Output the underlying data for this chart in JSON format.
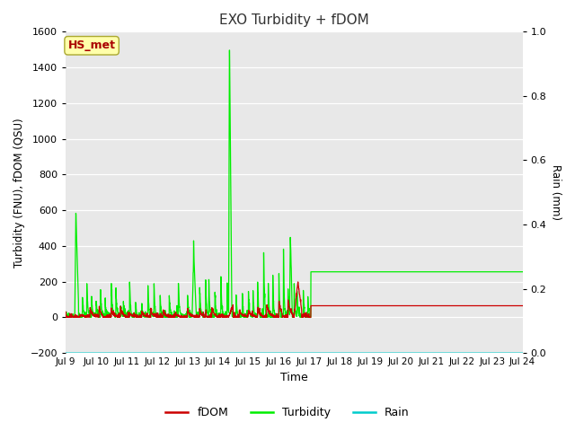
{
  "title": "EXO Turbidity + fDOM",
  "xlabel": "Time",
  "ylabel_left": "Turbidity (FNU), fDOM (QSU)",
  "ylabel_right": "Rain (mm)",
  "ylim_left": [
    -200,
    1600
  ],
  "ylim_right": [
    0.0,
    1.0
  ],
  "yticks_left": [
    -200,
    0,
    200,
    400,
    600,
    800,
    1000,
    1200,
    1400,
    1600
  ],
  "yticks_right": [
    0.0,
    0.2,
    0.4,
    0.6,
    0.8,
    1.0
  ],
  "xtick_labels": [
    "Jul 9",
    "Jul 10",
    "Jul 11",
    "Jul 12",
    "Jul 13",
    "Jul 14",
    "Jul 15",
    "Jul 16",
    "Jul 17",
    "Jul 18",
    "Jul 19",
    "Jul 20",
    "Jul 21",
    "Jul 22",
    "Jul 23",
    "Jul 24"
  ],
  "fig_bg_color": "#ffffff",
  "plot_bg_color": "#e8e8e8",
  "fdom_color": "#cc0000",
  "turbidity_color": "#00ee00",
  "rain_color": "#00cccc",
  "box_facecolor": "#ffffaa",
  "box_edgecolor": "#aaa830",
  "box_text": "HS_met",
  "box_text_color": "#aa0000",
  "legend_labels": [
    "fDOM",
    "Turbidity",
    "Rain"
  ],
  "legend_colors": [
    "#cc0000",
    "#00ee00",
    "#00cccc"
  ],
  "grid_color": "#ffffff",
  "linewidth": 0.9
}
